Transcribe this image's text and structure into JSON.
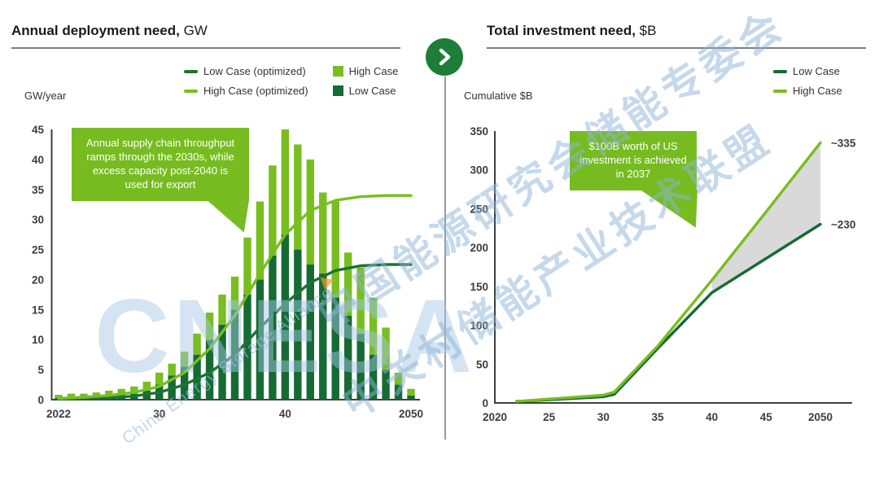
{
  "theme": {
    "bright_green": "#78be20",
    "dark_green": "#156b33",
    "dark_green_line": "#1d7235",
    "callout_green": "#76bc21",
    "arrow_circle_green": "#1e7d36",
    "band_gray": "#d9d9d9",
    "axis_gray": "#3f3f3f",
    "watermark_blue": "#9dc2e3"
  },
  "left_panel": {
    "title_bold": "Annual deployment need,",
    "title_unit": " GW",
    "axis_label": "GW/year",
    "legend": [
      {
        "label": "Low Case (optimized)",
        "marker": "line"
      },
      {
        "label": "High Case",
        "marker": "square"
      },
      {
        "label": "High Case (optimized)",
        "marker": "line"
      },
      {
        "label": "Low Case",
        "marker": "square"
      }
    ],
    "callout": "Annual supply chain throughput ramps through the 2030s, while excess capacity post-2040 is used for export"
  },
  "right_panel": {
    "title_bold": "Total investment need,",
    "title_unit": " $B",
    "axis_label": "Cumulative $B",
    "legend": [
      {
        "label": "Low Case",
        "marker": "line"
      },
      {
        "label": "High Case",
        "marker": "line"
      }
    ],
    "callout": "$100B worth of US investment is achieved in 2037"
  },
  "divider": {
    "arrow_icon": "chevron-right"
  },
  "watermark": {
    "line1": "中国能源研究会储能专委会",
    "line2": "中关村储能产业技术联盟",
    "logo": "CNESA",
    "logo_subtext": "China Energy Storage Alliance"
  },
  "chart_data": [
    {
      "type": "bar",
      "title": "Annual deployment need, GW",
      "xlabel": "",
      "ylabel": "GW/year",
      "ylim": [
        0,
        45
      ],
      "yticks": [
        0,
        5,
        10,
        15,
        20,
        25,
        30,
        35,
        40,
        45
      ],
      "xticks": [
        {
          "x": 2022,
          "label": "2022"
        },
        {
          "x": 2030,
          "label": "30"
        },
        {
          "x": 2040,
          "label": "40"
        },
        {
          "x": 2050,
          "label": "2050"
        }
      ],
      "grid": false,
      "legend_position": "top",
      "years": [
        2022,
        2023,
        2024,
        2025,
        2026,
        2027,
        2028,
        2029,
        2030,
        2031,
        2032,
        2033,
        2034,
        2035,
        2036,
        2037,
        2038,
        2039,
        2040,
        2041,
        2042,
        2043,
        2044,
        2045,
        2046,
        2047,
        2048,
        2049,
        2050
      ],
      "stacking_note": "Low Case bars stacked below High Case; stack_totals are top-of-stack GW values",
      "series": [
        {
          "name": "Low Case",
          "kind": "bar",
          "color": "#156b33",
          "values": [
            0.3,
            0.4,
            0.4,
            0.5,
            0.6,
            0.8,
            1.0,
            1.5,
            2.5,
            4.0,
            5.5,
            7.5,
            10.0,
            12.5,
            15.0,
            17.5,
            20.0,
            24.0,
            27.5,
            25.0,
            22.5,
            21.0,
            17.0,
            14.0,
            11.0,
            7.5,
            5.0,
            2.5,
            0.7
          ]
        },
        {
          "name": "High Case",
          "kind": "bar",
          "color": "#78be20",
          "stack_totals": [
            0.8,
            1.0,
            1.0,
            1.2,
            1.5,
            1.8,
            2.2,
            3.0,
            4.5,
            6.0,
            8.0,
            11.0,
            14.5,
            17.5,
            20.5,
            27.0,
            33.0,
            39.0,
            45.0,
            42.5,
            40.0,
            34.5,
            33.0,
            24.5,
            22.0,
            17.0,
            12.0,
            4.5,
            1.8
          ]
        },
        {
          "name": "Low Case (optimized)",
          "kind": "line",
          "color": "#1d7235",
          "points": [
            [
              2022,
              0.1
            ],
            [
              2024,
              0.2
            ],
            [
              2026,
              0.3
            ],
            [
              2028,
              0.6
            ],
            [
              2030,
              1.2
            ],
            [
              2032,
              2.5
            ],
            [
              2034,
              4.5
            ],
            [
              2036,
              7.5
            ],
            [
              2038,
              12.0
            ],
            [
              2040,
              16.0
            ],
            [
              2042,
              19.5
            ],
            [
              2044,
              21.5
            ],
            [
              2046,
              22.3
            ],
            [
              2048,
              22.5
            ],
            [
              2050,
              22.5
            ]
          ]
        },
        {
          "name": "High Case (optimized)",
          "kind": "line",
          "color": "#78be20",
          "points": [
            [
              2022,
              0.2
            ],
            [
              2024,
              0.4
            ],
            [
              2026,
              0.7
            ],
            [
              2028,
              1.2
            ],
            [
              2030,
              2.2
            ],
            [
              2032,
              4.5
            ],
            [
              2034,
              8.5
            ],
            [
              2036,
              14.0
            ],
            [
              2038,
              21.0
            ],
            [
              2040,
              27.5
            ],
            [
              2042,
              31.5
            ],
            [
              2044,
              33.2
            ],
            [
              2046,
              33.8
            ],
            [
              2048,
              34.0
            ],
            [
              2050,
              34.0
            ]
          ]
        }
      ],
      "annotation": "Annual supply chain throughput ramps through the 2030s, while excess capacity post-2040 is used for export"
    },
    {
      "type": "line",
      "title": "Total investment need, $B",
      "xlabel": "",
      "ylabel": "Cumulative $B",
      "ylim": [
        0,
        350
      ],
      "yticks": [
        0,
        50,
        100,
        150,
        200,
        250,
        300,
        350
      ],
      "xticks": [
        {
          "x": 2020,
          "label": "2020"
        },
        {
          "x": 2025,
          "label": "25"
        },
        {
          "x": 2030,
          "label": "30"
        },
        {
          "x": 2035,
          "label": "35"
        },
        {
          "x": 2040,
          "label": "40"
        },
        {
          "x": 2045,
          "label": "45"
        },
        {
          "x": 2050,
          "label": "2050"
        }
      ],
      "grid": false,
      "legend_position": "top-right",
      "series": [
        {
          "name": "High Case",
          "color": "#78be20",
          "end_label": "~335",
          "points": [
            [
              2022,
              2
            ],
            [
              2025,
              5
            ],
            [
              2030,
              10
            ],
            [
              2031,
              14
            ],
            [
              2035,
              73
            ],
            [
              2040,
              158
            ],
            [
              2045,
              246
            ],
            [
              2050,
              335
            ]
          ]
        },
        {
          "name": "Low Case",
          "color": "#156b33",
          "end_label": "~230",
          "points": [
            [
              2022,
              2
            ],
            [
              2025,
              4
            ],
            [
              2030,
              8
            ],
            [
              2031,
              11
            ],
            [
              2035,
              70
            ],
            [
              2040,
              142
            ],
            [
              2045,
              186
            ],
            [
              2050,
              230
            ]
          ]
        }
      ],
      "band": {
        "between": [
          "High Case",
          "Low Case"
        ],
        "from_x": 2040,
        "to_x": 2050,
        "color": "#d9d9d9"
      },
      "annotation": "$100B worth of US investment is achieved in 2037"
    }
  ]
}
